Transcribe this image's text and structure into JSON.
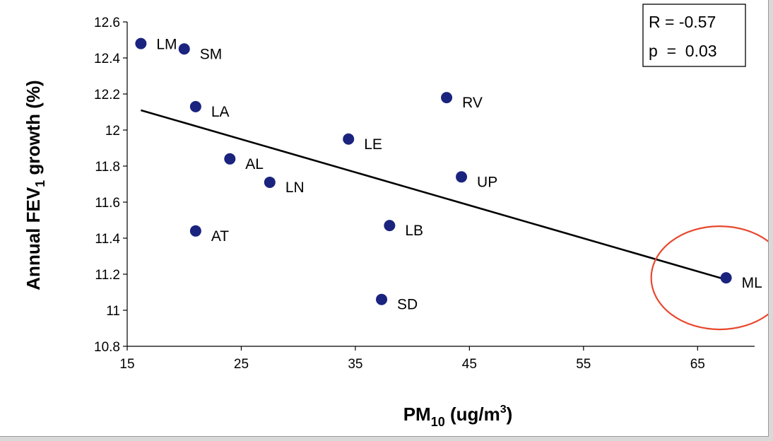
{
  "chart_data": {
    "type": "scatter",
    "xlabel": {
      "main": "PM",
      "sub": "10",
      "rest": " (ug/m",
      "sup": "3",
      "close": ")"
    },
    "ylabel": {
      "main": "Annual FEV",
      "sub": "1",
      "rest": " growth (%)"
    },
    "xlim": [
      15,
      70
    ],
    "ylim": [
      10.8,
      12.6
    ],
    "xticks": [
      "15",
      "25",
      "35",
      "45",
      "55",
      "65"
    ],
    "yticks": [
      "10.8",
      "11",
      "11.2",
      "11.4",
      "11.6",
      "11.8",
      "12",
      "12.2",
      "12.4",
      "12.6"
    ],
    "points": [
      {
        "label": "LM",
        "x": 16.2,
        "y": 12.48
      },
      {
        "label": "SM",
        "x": 20.0,
        "y": 12.45
      },
      {
        "label": "LA",
        "x": 21.0,
        "y": 12.13
      },
      {
        "label": "AL",
        "x": 24.0,
        "y": 11.84
      },
      {
        "label": "LN",
        "x": 27.5,
        "y": 11.71
      },
      {
        "label": "AT",
        "x": 21.0,
        "y": 11.44
      },
      {
        "label": "LE",
        "x": 34.4,
        "y": 11.95
      },
      {
        "label": "RV",
        "x": 43.0,
        "y": 12.18
      },
      {
        "label": "UP",
        "x": 44.3,
        "y": 11.74
      },
      {
        "label": "LB",
        "x": 38.0,
        "y": 11.47
      },
      {
        "label": "SD",
        "x": 37.3,
        "y": 11.06
      },
      {
        "label": "ML",
        "x": 67.5,
        "y": 11.18
      }
    ],
    "trendline": {
      "x": [
        16.2,
        67.5
      ],
      "y": [
        12.11,
        11.17
      ]
    },
    "stats": {
      "r": "R = -0.57",
      "p": "p  =  0.03"
    },
    "highlight": {
      "label": "ML",
      "color": "#e8482e"
    },
    "colors": {
      "point": "#1a237e",
      "line": "#000000"
    },
    "grid": false
  }
}
